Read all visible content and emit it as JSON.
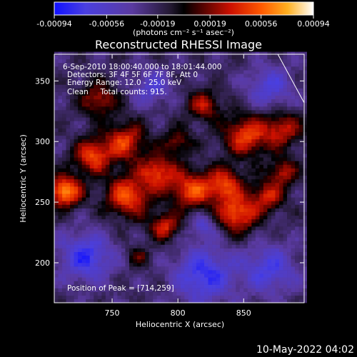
{
  "chart_data": {
    "type": "heatmap",
    "title": "Reconstructed RHESSI Image",
    "xlabel": "Heliocentric X (arcsec)",
    "ylabel": "Heliocentric Y (arcsec)",
    "xlim": [
      706,
      896
    ],
    "ylim": [
      167,
      372
    ],
    "x_ticks": [
      "750",
      "800",
      "850"
    ],
    "x_tick_values": [
      750,
      800,
      850
    ],
    "y_ticks": [
      "200",
      "250",
      "300",
      "350"
    ],
    "y_tick_values": [
      200,
      250,
      300,
      350
    ],
    "colorbar": {
      "ticks": [
        "-0.00094",
        "-0.00056",
        "-0.00019",
        "0.00019",
        "0.00056",
        "0.00094"
      ],
      "tick_values": [
        -0.00094,
        -0.00056,
        -0.00019,
        0.00019,
        0.00056,
        0.00094
      ],
      "range": [
        -0.00094,
        0.00094
      ],
      "unit_label": "(photons cm⁻² s⁻¹ asec⁻²)"
    },
    "info_lines": [
      "6-Sep-2010 18:00:40.000 to 18:01:44.000",
      "Detectors: 3F 4F 5F 6F 7F 8F, Att 0",
      "Energy Range: 12.0 - 25.0 keV",
      "Clean     Total counts: 915."
    ],
    "peak_label": "Position of Peak = [714,259]",
    "peak": [
      714,
      259
    ],
    "bright_regions": [
      {
        "x": 714,
        "y": 259,
        "intensity": 1.0,
        "sigma": 9
      },
      {
        "x": 735,
        "y": 288,
        "intensity": 0.75,
        "sigma": 10
      },
      {
        "x": 760,
        "y": 300,
        "intensity": 0.7,
        "sigma": 11
      },
      {
        "x": 762,
        "y": 255,
        "intensity": 0.8,
        "sigma": 12
      },
      {
        "x": 790,
        "y": 230,
        "intensity": 0.65,
        "sigma": 8
      },
      {
        "x": 785,
        "y": 275,
        "intensity": 0.7,
        "sigma": 10
      },
      {
        "x": 810,
        "y": 260,
        "intensity": 0.75,
        "sigma": 11
      },
      {
        "x": 835,
        "y": 265,
        "intensity": 0.7,
        "sigma": 10
      },
      {
        "x": 845,
        "y": 240,
        "intensity": 0.8,
        "sigma": 11
      },
      {
        "x": 868,
        "y": 255,
        "intensity": 0.6,
        "sigma": 9
      },
      {
        "x": 852,
        "y": 305,
        "intensity": 0.75,
        "sigma": 12
      },
      {
        "x": 880,
        "y": 310,
        "intensity": 0.6,
        "sigma": 10
      },
      {
        "x": 820,
        "y": 330,
        "intensity": 0.55,
        "sigma": 9
      },
      {
        "x": 800,
        "y": 300,
        "intensity": 0.45,
        "sigma": 8
      },
      {
        "x": 740,
        "y": 335,
        "intensity": 0.55,
        "sigma": 10
      },
      {
        "x": 880,
        "y": 275,
        "intensity": 0.55,
        "sigma": 8
      },
      {
        "x": 770,
        "y": 205,
        "intensity": 0.35,
        "sigma": 6
      }
    ],
    "dark_regions": [
      {
        "x": 730,
        "y": 205,
        "intensity": -0.6,
        "sigma": 14
      },
      {
        "x": 820,
        "y": 190,
        "intensity": -0.6,
        "sigma": 16
      },
      {
        "x": 870,
        "y": 195,
        "intensity": -0.5,
        "sigma": 14
      },
      {
        "x": 780,
        "y": 345,
        "intensity": -0.4,
        "sigma": 10
      },
      {
        "x": 870,
        "y": 345,
        "intensity": -0.45,
        "sigma": 12
      },
      {
        "x": 820,
        "y": 230,
        "intensity": -0.4,
        "sigma": 7
      }
    ],
    "limb_line": [
      [
        876,
        372
      ],
      [
        896,
        332
      ]
    ]
  },
  "footer": {
    "date_stamp": "10-May-2022 04:02"
  }
}
